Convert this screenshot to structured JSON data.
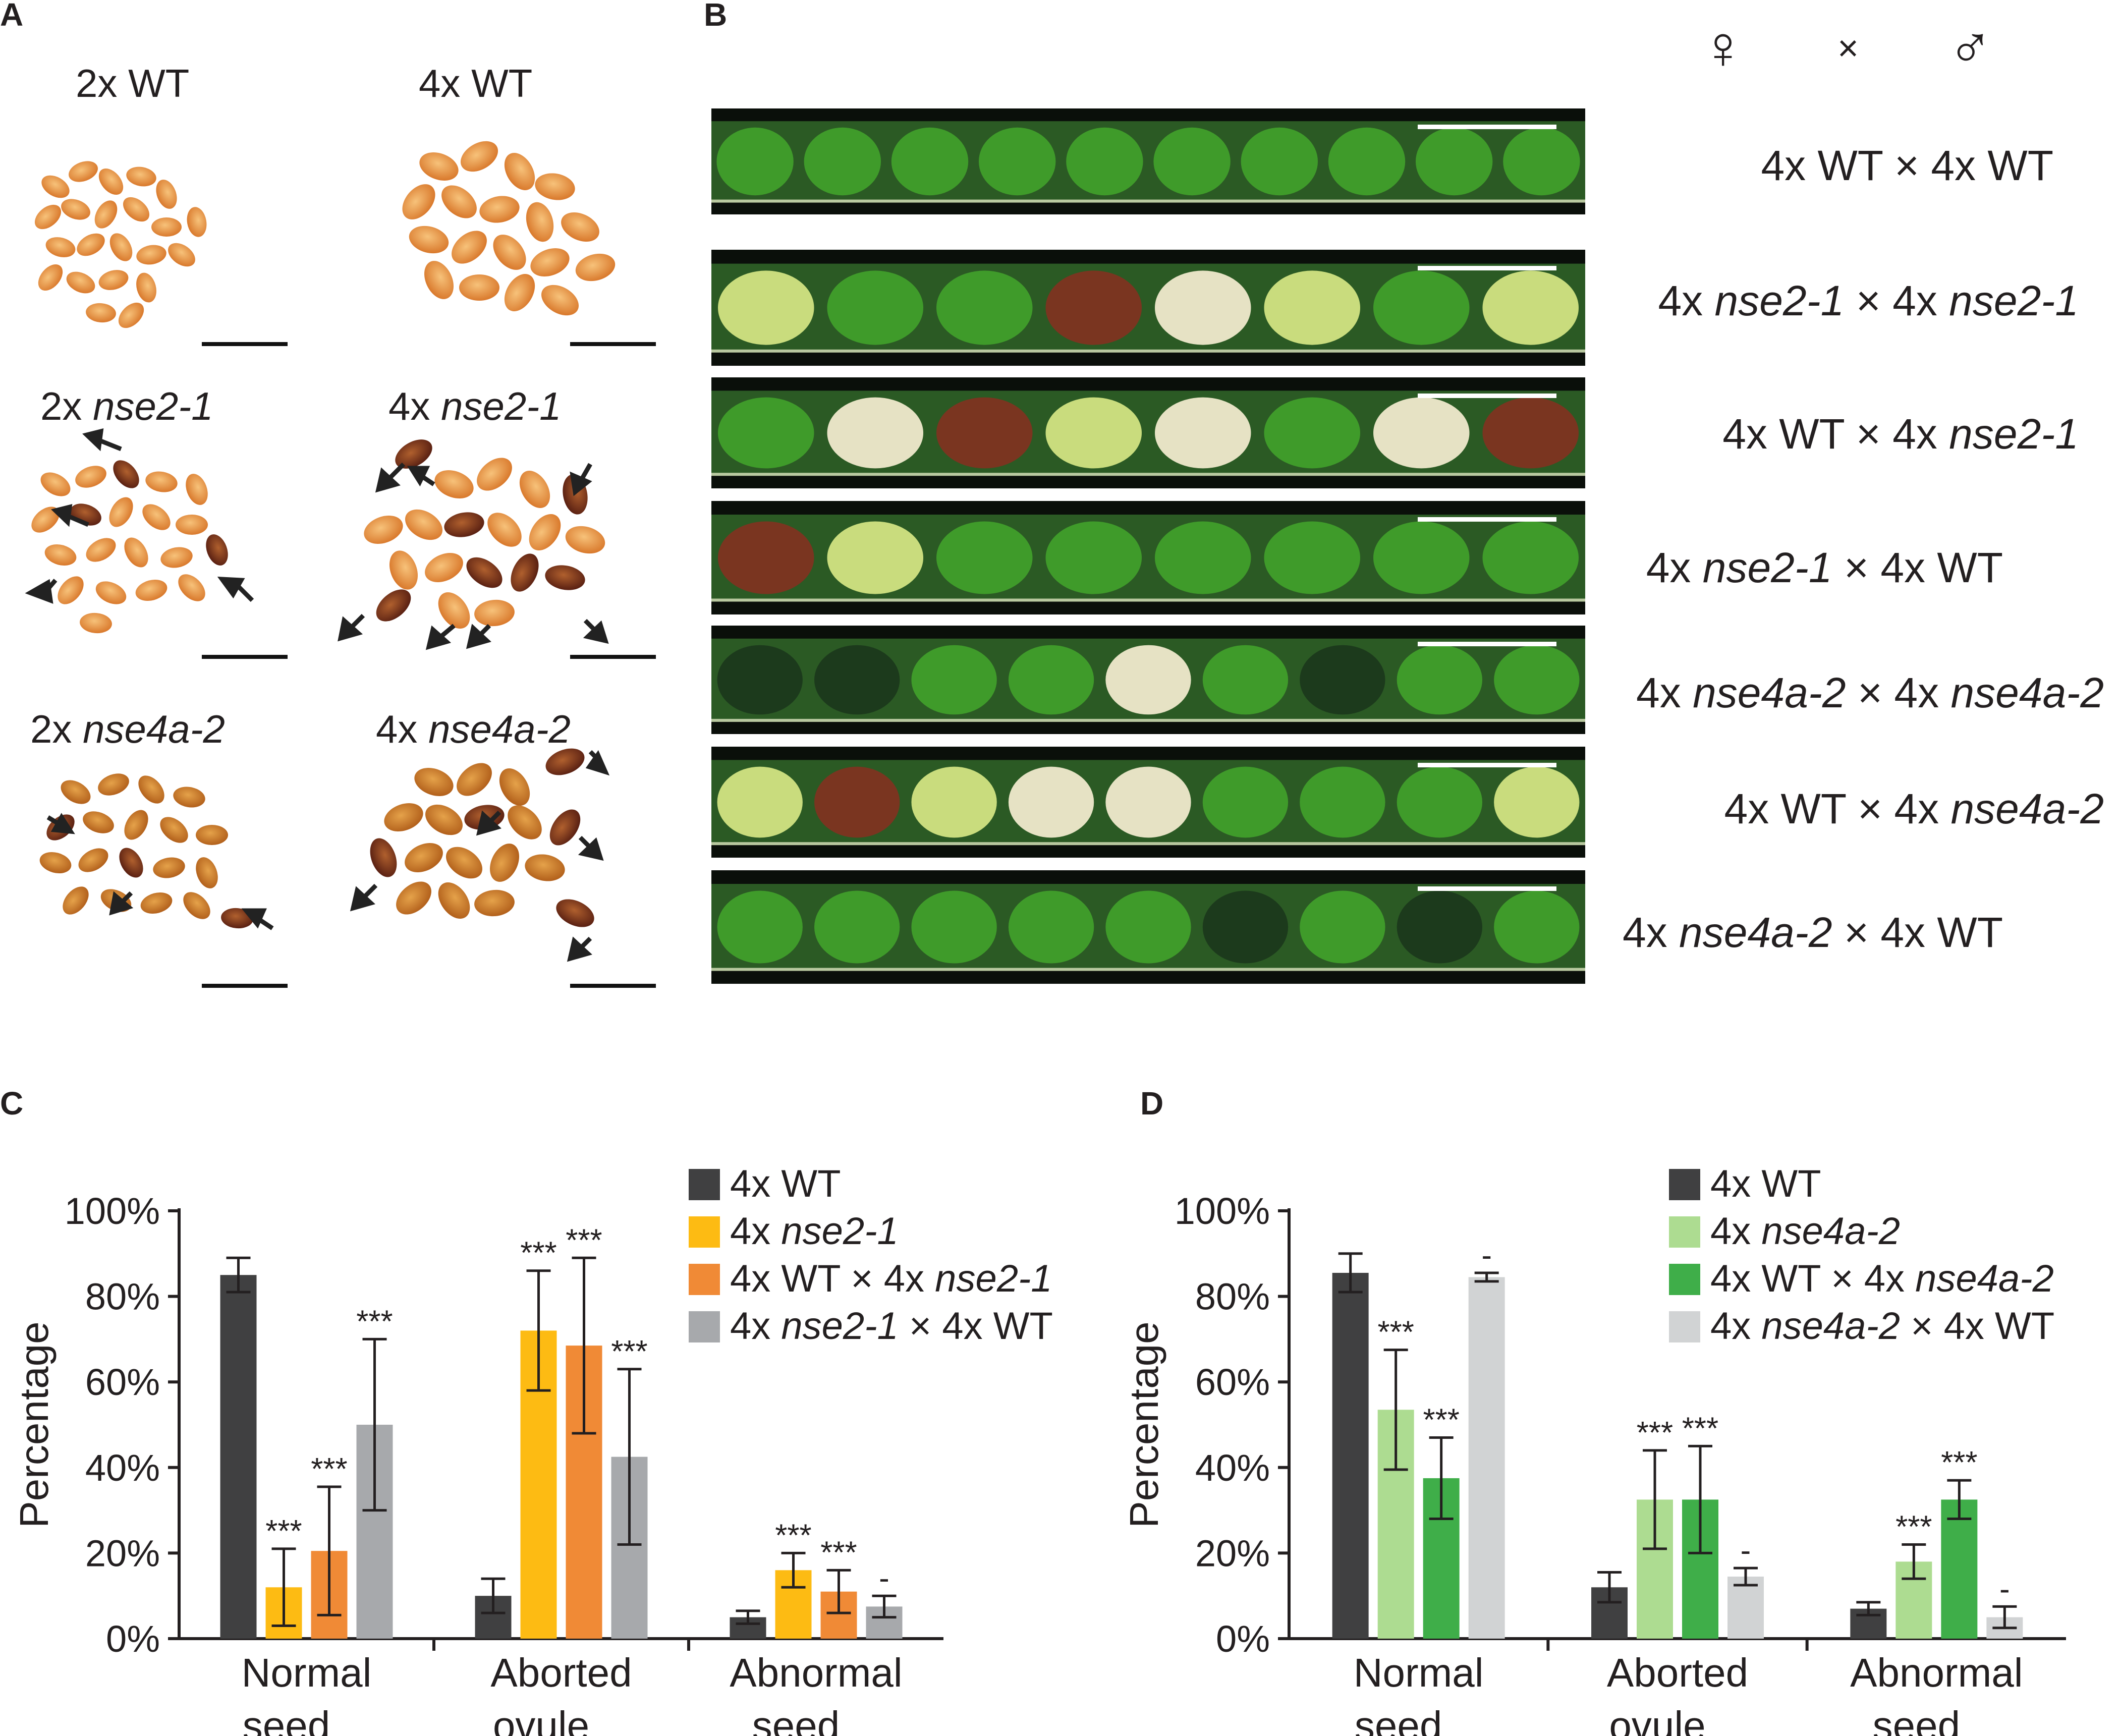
{
  "panels": {
    "A": {
      "letter": "A",
      "labels": [
        {
          "prefix": "2x",
          "name": "WT",
          "italic": false
        },
        {
          "prefix": "4x",
          "name": "WT",
          "italic": false
        },
        {
          "prefix": "2x",
          "name": "nse2-1",
          "italic": true
        },
        {
          "prefix": "4x",
          "name": "nse2-1",
          "italic": true
        },
        {
          "prefix": "2x",
          "name": "nse4a-2",
          "italic": true
        },
        {
          "prefix": "4x",
          "name": "nse4a-2",
          "italic": true
        }
      ]
    },
    "B": {
      "letter": "B",
      "female_symbol": "♀",
      "times_symbol": "×",
      "male_symbol": "♂",
      "crosses": [
        {
          "female_prefix": "4x",
          "female": "WT",
          "female_italic": false,
          "male_prefix": "4x",
          "male": "WT",
          "male_italic": false
        },
        {
          "female_prefix": "4x",
          "female": "nse2-1",
          "female_italic": true,
          "male_prefix": "4x",
          "male": "nse2-1",
          "male_italic": true
        },
        {
          "female_prefix": "4x",
          "female": "WT",
          "female_italic": false,
          "male_prefix": "4x",
          "male": "nse2-1",
          "male_italic": true
        },
        {
          "female_prefix": "4x",
          "female": "nse2-1",
          "female_italic": true,
          "male_prefix": "4x",
          "male": "WT",
          "male_italic": false
        },
        {
          "female_prefix": "4x",
          "female": "nse4a-2",
          "female_italic": true,
          "male_prefix": "4x",
          "male": "nse4a-2",
          "male_italic": true
        },
        {
          "female_prefix": "4x",
          "female": "WT",
          "female_italic": false,
          "male_prefix": "4x",
          "male": "nse4a-2",
          "male_italic": true
        },
        {
          "female_prefix": "4x",
          "female": "nse4a-2",
          "female_italic": true,
          "male_prefix": "4x",
          "male": "WT",
          "male_italic": false
        }
      ]
    },
    "C": {
      "letter": "C"
    },
    "D": {
      "letter": "D"
    }
  },
  "chart_data": [
    {
      "panel": "C",
      "type": "bar",
      "title": "",
      "xlabel": "",
      "ylabel": "Percentage",
      "ylim": [
        0,
        100
      ],
      "yticks": [
        "0%",
        "20%",
        "40%",
        "60%",
        "80%",
        "100%"
      ],
      "categories": [
        [
          "Normal",
          "seed"
        ],
        [
          "Aborted",
          "ovule"
        ],
        [
          "Abnormal",
          "seed"
        ]
      ],
      "legend_position": "top-right",
      "series": [
        {
          "name": "4x WT",
          "legend": [
            {
              "t": "4x WT",
              "i": false
            }
          ],
          "color": "#404041",
          "values": [
            85,
            10,
            5
          ],
          "errors": [
            4,
            4,
            1.5
          ],
          "marks": [
            "",
            "",
            ""
          ]
        },
        {
          "name": "4x nse2-1",
          "legend": [
            {
              "t": "4x ",
              "i": false
            },
            {
              "t": "nse2-1",
              "i": true
            }
          ],
          "color": "#fdbb13",
          "values": [
            12,
            72,
            16
          ],
          "errors": [
            9,
            14,
            4
          ],
          "marks": [
            "***",
            "***",
            "***"
          ]
        },
        {
          "name": "4x WT × 4x nse2-1",
          "legend": [
            {
              "t": "4x WT  ×  4x ",
              "i": false
            },
            {
              "t": "nse2-1",
              "i": true
            }
          ],
          "color": "#f08a36",
          "values": [
            20.5,
            68.5,
            11
          ],
          "errors": [
            15,
            20.5,
            5
          ],
          "marks": [
            "***",
            "***",
            "***"
          ]
        },
        {
          "name": "4x nse2-1 × 4x WT",
          "legend": [
            {
              "t": "4x ",
              "i": false
            },
            {
              "t": "nse2-1",
              "i": true
            },
            {
              "t": " × 4x WT",
              "i": false
            }
          ],
          "color": "#a7a9ac",
          "values": [
            50,
            42.5,
            7.5
          ],
          "errors": [
            20,
            20.5,
            2.5
          ],
          "marks": [
            "***",
            "***",
            "-"
          ]
        }
      ]
    },
    {
      "panel": "D",
      "type": "bar",
      "title": "",
      "xlabel": "",
      "ylabel": "Percentage",
      "ylim": [
        0,
        100
      ],
      "yticks": [
        "0%",
        "20%",
        "40%",
        "60%",
        "80%",
        "100%"
      ],
      "categories": [
        [
          "Normal",
          "seed"
        ],
        [
          "Aborted",
          "ovule"
        ],
        [
          "Abnormal",
          "seed"
        ]
      ],
      "legend_position": "top-right",
      "series": [
        {
          "name": "4x WT",
          "legend": [
            {
              "t": "4x WT",
              "i": false
            }
          ],
          "color": "#404041",
          "values": [
            85.5,
            12,
            7
          ],
          "errors": [
            4.5,
            3.5,
            1.5
          ],
          "marks": [
            "",
            "",
            ""
          ]
        },
        {
          "name": "4x nse4a-2",
          "legend": [
            {
              "t": "4x ",
              "i": false
            },
            {
              "t": "nse4a-2",
              "i": true
            }
          ],
          "color": "#addc91",
          "values": [
            53.5,
            32.5,
            18
          ],
          "errors": [
            14,
            11.5,
            4
          ],
          "marks": [
            "***",
            "***",
            "***"
          ]
        },
        {
          "name": "4x WT × 4x nse4a-2",
          "legend": [
            {
              "t": "4x WT  ×  4x ",
              "i": false
            },
            {
              "t": "nse4a-2",
              "i": true
            }
          ],
          "color": "#3fae49",
          "values": [
            37.5,
            32.5,
            32.5
          ],
          "errors": [
            9.5,
            12.5,
            4.5
          ],
          "marks": [
            "***",
            "***",
            "***"
          ]
        },
        {
          "name": "4x nse4a-2 × 4x WT",
          "legend": [
            {
              "t": "4x ",
              "i": false
            },
            {
              "t": "nse4a-2",
              "i": true
            },
            {
              "t": " × 4x WT",
              "i": false
            }
          ],
          "color": "#d1d3d4",
          "values": [
            84.5,
            14.5,
            5
          ],
          "errors": [
            1,
            2,
            2.5
          ],
          "marks": [
            "-",
            "-",
            "-"
          ]
        }
      ]
    }
  ]
}
